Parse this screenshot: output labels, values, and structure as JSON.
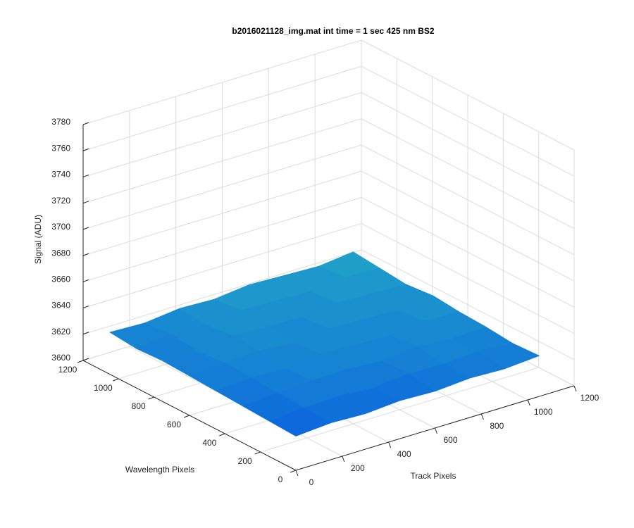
{
  "chart_data": {
    "type": "surface",
    "title": "b2016021128_img.mat int time = 1 sec  425 nm BS2",
    "xlabel": "Track Pixels",
    "ylabel": "Wavelength Pixels",
    "zlabel": "Signal (ADU)",
    "x": [
      0,
      150,
      300,
      450,
      600,
      750,
      900,
      1050
    ],
    "y": [
      0,
      150,
      300,
      450,
      600,
      750,
      900,
      1050
    ],
    "z": [
      [
        3626,
        3628,
        3627,
        3629,
        3628,
        3630,
        3629,
        3631
      ],
      [
        3627,
        3629,
        3630,
        3628,
        3631,
        3630,
        3632,
        3630
      ],
      [
        3628,
        3630,
        3631,
        3632,
        3630,
        3633,
        3631,
        3632
      ],
      [
        3629,
        3631,
        3630,
        3633,
        3632,
        3631,
        3634,
        3633
      ],
      [
        3630,
        3632,
        3633,
        3631,
        3634,
        3633,
        3632,
        3635
      ],
      [
        3631,
        3630,
        3634,
        3633,
        3632,
        3635,
        3634,
        3633
      ],
      [
        3630,
        3633,
        3632,
        3635,
        3634,
        3633,
        3636,
        3635
      ],
      [
        3632,
        3631,
        3634,
        3633,
        3636,
        3635,
        3634,
        3637
      ]
    ],
    "colors": [
      "#0a5fe0",
      "#22a8c6"
    ],
    "xlim": [
      0,
      1200
    ],
    "xticks": [
      0,
      200,
      400,
      600,
      800,
      1000,
      1200
    ],
    "ylim": [
      0,
      1200
    ],
    "yticks": [
      0,
      200,
      400,
      600,
      800,
      1000,
      1200
    ],
    "zlim": [
      3600,
      3780
    ],
    "zticks": [
      3600,
      3620,
      3640,
      3660,
      3680,
      3700,
      3720,
      3740,
      3760,
      3780
    ],
    "grid": true
  }
}
